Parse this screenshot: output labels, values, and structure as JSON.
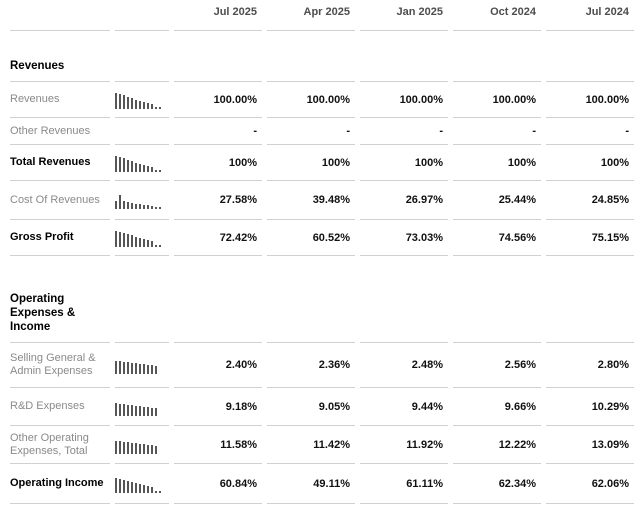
{
  "columns": [
    "Jul 2025",
    "Apr 2025",
    "Jan 2025",
    "Oct 2024",
    "Jul 2024"
  ],
  "sections": [
    {
      "title": "Revenues",
      "rows": [
        {
          "label": "Revenues",
          "bold": false,
          "values": [
            "100.00%",
            "100.00%",
            "100.00%",
            "100.00%",
            "100.00%"
          ],
          "spark": [
            16,
            15,
            14,
            12,
            11,
            9,
            8,
            7,
            6,
            5,
            2,
            2
          ]
        },
        {
          "label": "Other Revenues",
          "bold": false,
          "values": [
            "-",
            "-",
            "-",
            "-",
            "-"
          ],
          "spark": null
        },
        {
          "label": "Total Revenues",
          "bold": true,
          "values": [
            "100%",
            "100%",
            "100%",
            "100%",
            "100%"
          ],
          "spark": [
            16,
            15,
            14,
            12,
            11,
            9,
            8,
            7,
            6,
            5,
            2,
            2
          ]
        },
        {
          "label": "Cost Of Revenues",
          "bold": false,
          "values": [
            "27.58%",
            "39.48%",
            "26.97%",
            "25.44%",
            "24.85%"
          ],
          "spark": [
            8,
            14,
            8,
            7,
            6,
            5,
            5,
            4,
            4,
            3,
            2,
            2
          ]
        },
        {
          "label": "Gross Profit",
          "bold": true,
          "values": [
            "72.42%",
            "60.52%",
            "73.03%",
            "74.56%",
            "75.15%"
          ],
          "spark": [
            16,
            15,
            14,
            13,
            12,
            10,
            9,
            8,
            7,
            6,
            2,
            2
          ]
        }
      ]
    },
    {
      "title": "Operating Expenses & Income",
      "rows": [
        {
          "label": "Selling General & Admin Expenses",
          "bold": false,
          "values": [
            "2.40%",
            "2.36%",
            "2.48%",
            "2.56%",
            "2.80%"
          ],
          "spark": [
            13,
            13,
            12,
            12,
            11,
            11,
            10,
            10,
            9,
            9,
            8
          ]
        },
        {
          "label": "R&D Expenses",
          "bold": false,
          "values": [
            "9.18%",
            "9.05%",
            "9.44%",
            "9.66%",
            "10.29%"
          ],
          "spark": [
            13,
            12,
            12,
            11,
            11,
            10,
            10,
            9,
            9,
            8,
            8
          ]
        },
        {
          "label": "Other Operating Expenses, Total",
          "bold": false,
          "values": [
            "11.58%",
            "11.42%",
            "11.92%",
            "12.22%",
            "13.09%"
          ],
          "spark": [
            13,
            13,
            12,
            12,
            11,
            11,
            10,
            10,
            9,
            9,
            8
          ]
        },
        {
          "label": "Operating Income",
          "bold": true,
          "values": [
            "60.84%",
            "49.11%",
            "61.11%",
            "62.34%",
            "62.06%"
          ],
          "spark": [
            15,
            14,
            13,
            12,
            11,
            10,
            9,
            8,
            7,
            6,
            2,
            2
          ]
        }
      ]
    }
  ]
}
